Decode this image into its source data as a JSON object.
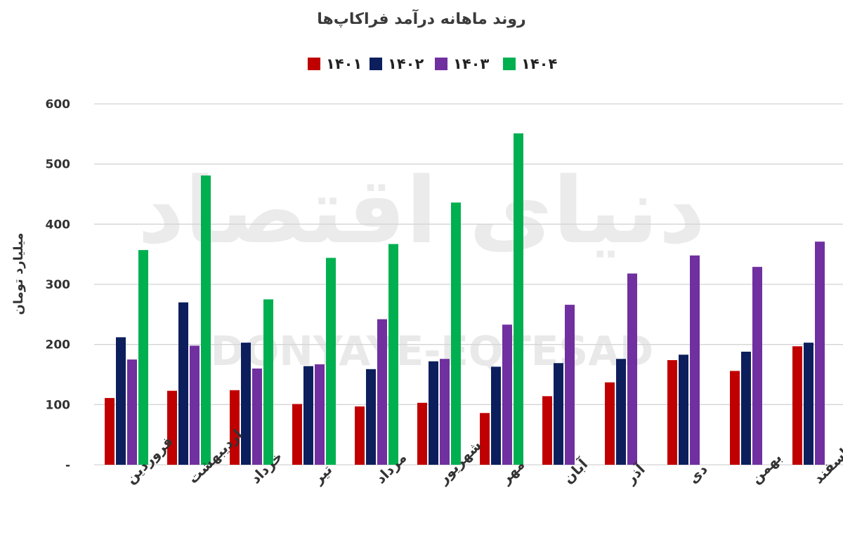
{
  "watermark": {
    "text": "DONYAYE-EQTESAD",
    "script_text": "دنیای اقتصاد"
  },
  "chart_data": {
    "type": "bar",
    "title": "روند ماهانه درآمد فراکاپ‌ها",
    "ylabel": "میلیارد تومان",
    "xlabel": "",
    "ylim": [
      0,
      600
    ],
    "yticks": [
      0,
      100,
      200,
      300,
      400,
      500,
      600
    ],
    "ytick_labels": [
      "-",
      "100",
      "200",
      "300",
      "400",
      "500",
      "600"
    ],
    "grid": true,
    "legend_position": "top-center",
    "categories": [
      "فروردین",
      "اردیبهشت",
      "خرداد",
      "تیر",
      "مرداد",
      "شهریور",
      "مهر",
      "آبان",
      "آذر",
      "دی",
      "بهمن",
      "اسفند"
    ],
    "series": [
      {
        "name": "۱۴۰۱",
        "color": "#c00000",
        "values": [
          111,
          123,
          124,
          101,
          97,
          103,
          86,
          114,
          137,
          174,
          156,
          197
        ]
      },
      {
        "name": "۱۴۰۲",
        "color": "#0c1f5c",
        "values": [
          212,
          270,
          203,
          164,
          159,
          172,
          163,
          169,
          176,
          183,
          188,
          203
        ]
      },
      {
        "name": "۱۴۰۳",
        "color": "#7030a0",
        "values": [
          175,
          198,
          160,
          167,
          242,
          176,
          233,
          266,
          318,
          348,
          329,
          371
        ]
      },
      {
        "name": "۱۴۰۴",
        "color": "#00b050",
        "values": [
          357,
          481,
          275,
          344,
          367,
          436,
          551,
          null,
          null,
          null,
          null,
          null
        ]
      }
    ]
  }
}
